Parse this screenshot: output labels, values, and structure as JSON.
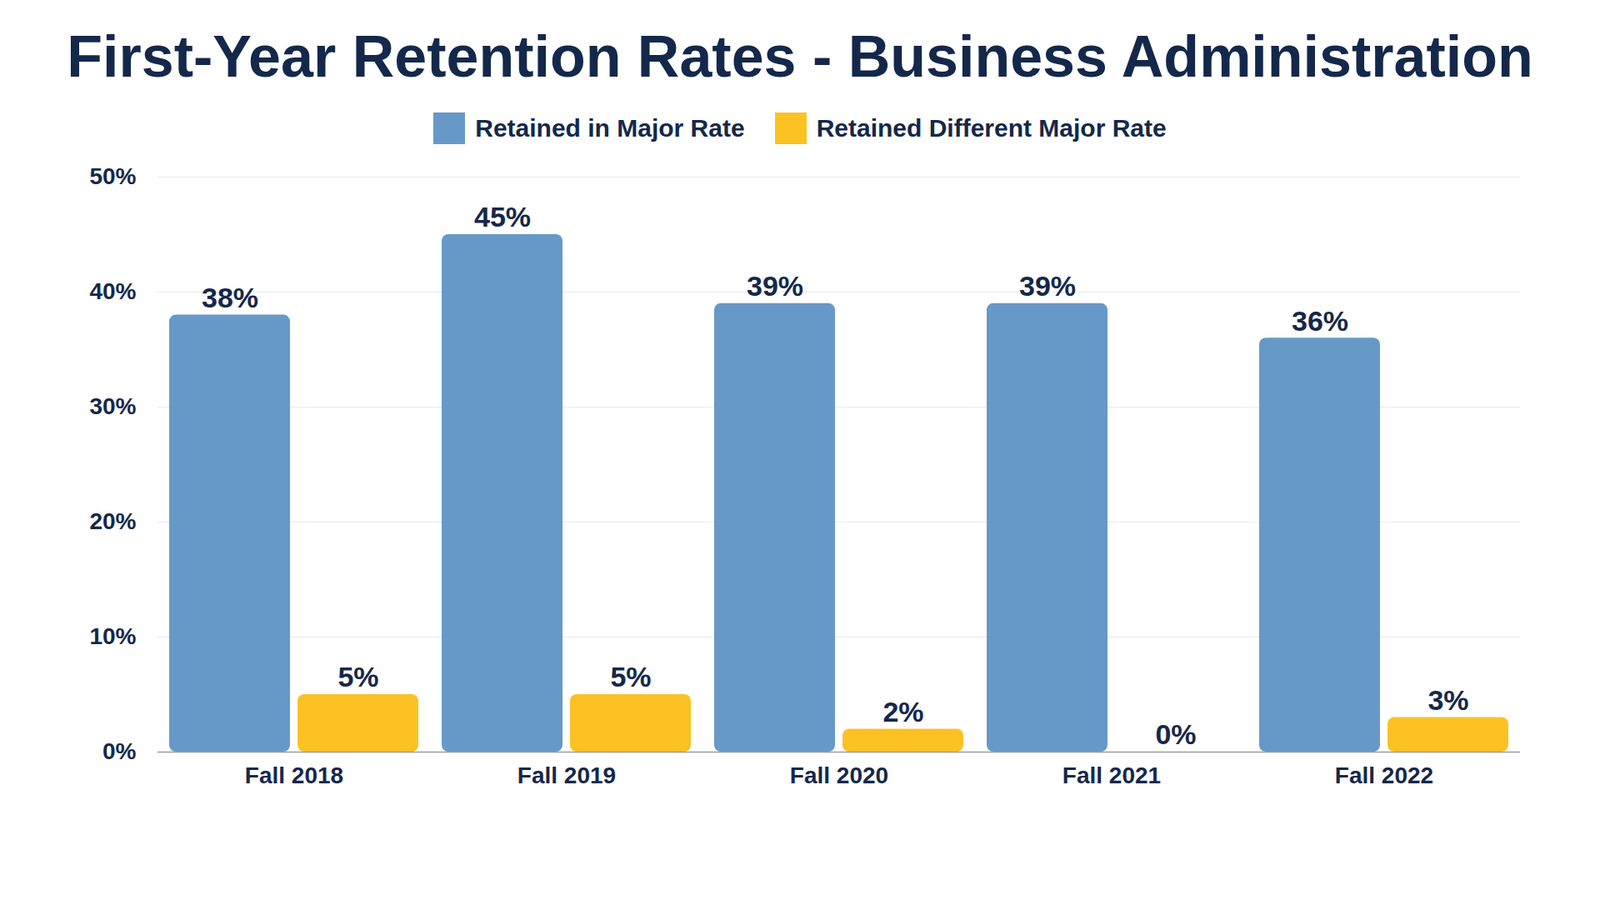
{
  "chart_data": {
    "type": "bar",
    "title": "First-Year Retention Rates - Business Administration",
    "categories": [
      "Fall 2018",
      "Fall 2019",
      "Fall 2020",
      "Fall 2021",
      "Fall 2022"
    ],
    "series": [
      {
        "name": "Retained in Major Rate",
        "color": "#6699c8",
        "values": [
          38,
          45,
          39,
          39,
          36
        ],
        "value_labels": [
          "38%",
          "45%",
          "39%",
          "39%",
          "36%"
        ]
      },
      {
        "name": "Retained Different Major Rate",
        "color": "#fcc223",
        "values": [
          5,
          5,
          2,
          0,
          3
        ],
        "value_labels": [
          "5%",
          "5%",
          "2%",
          "0%",
          "3%"
        ]
      }
    ],
    "ylim": [
      0,
      50
    ],
    "yticks": [
      {
        "value": 0,
        "label": "0%"
      },
      {
        "value": 10,
        "label": "10%"
      },
      {
        "value": 20,
        "label": "20%"
      },
      {
        "value": 30,
        "label": "30%"
      },
      {
        "value": 40,
        "label": "40%"
      },
      {
        "value": 50,
        "label": "50%"
      }
    ],
    "grid": true,
    "legend": "top",
    "data_labels": true
  }
}
